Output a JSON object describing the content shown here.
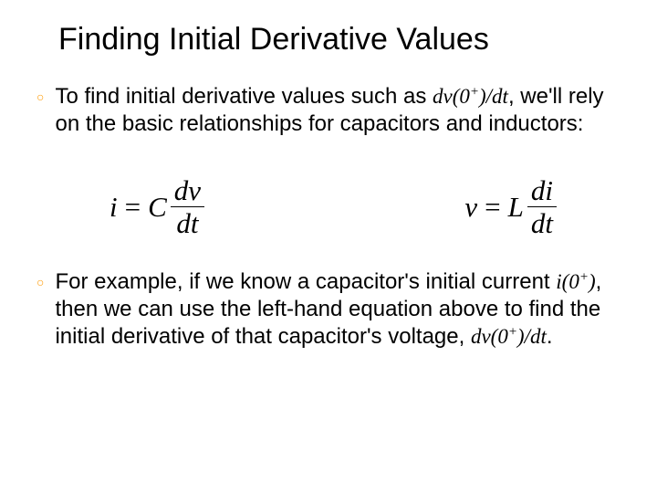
{
  "title": "Finding Initial Derivative Values",
  "bullets": [
    {
      "pre": "To find initial derivative values such as ",
      "var": "dv(0",
      "varSup": "+",
      "varPost": ")/dt",
      "post": ", we'll rely on the basic relationships for capacitors and inductors:"
    },
    {
      "pre": "For example, if we know a capacitor's initial current ",
      "var1": "i(0",
      "var1Sup": "+",
      "var1Post": ")",
      "mid": ", then we can use the left-hand equation above to find the initial derivative of that capacitor's voltage, ",
      "var2": "dv(0",
      "var2Sup": "+",
      "var2Post": ")/dt",
      "post": "."
    }
  ],
  "equations": {
    "left": {
      "lhs": "i",
      "coef": "C",
      "num": "dv",
      "den": "dt"
    },
    "right": {
      "lhs": "v",
      "coef": "L",
      "num": "di",
      "den": "dt"
    }
  },
  "colors": {
    "bulletMarker": "#ff9900",
    "text": "#000000",
    "background": "#ffffff"
  },
  "typography": {
    "titleFont": "Arial",
    "titleSize": 34,
    "bodyFont": "Verdana",
    "bodySize": 24,
    "mathFont": "Cambria Math",
    "equationSize": 31,
    "italicVarFont": "Times New Roman"
  }
}
